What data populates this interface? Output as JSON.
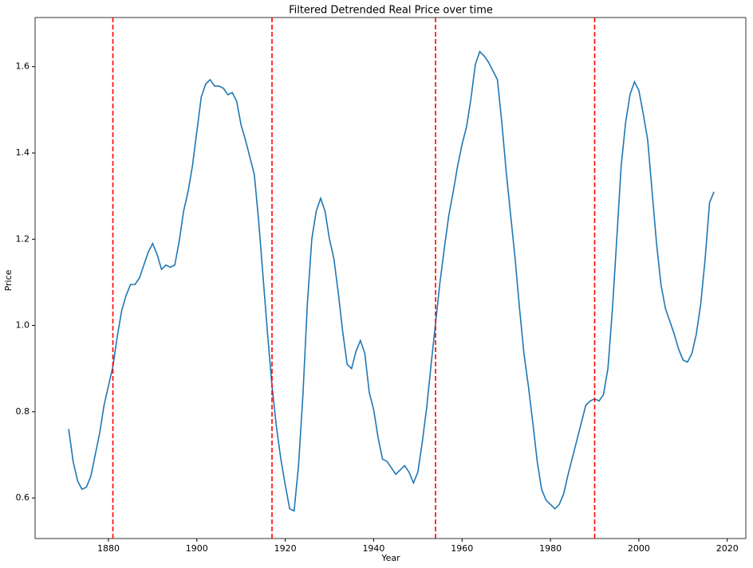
{
  "chart_data": {
    "type": "line",
    "title": "Filtered Detrended Real Price over time",
    "x_label": "Year",
    "y_label": "Price",
    "color": "#1f77b4",
    "x": [
      1871,
      1872,
      1873,
      1874,
      1875,
      1876,
      1877,
      1878,
      1879,
      1880,
      1881,
      1882,
      1883,
      1884,
      1885,
      1886,
      1887,
      1888,
      1889,
      1890,
      1891,
      1892,
      1893,
      1894,
      1895,
      1896,
      1897,
      1898,
      1899,
      1900,
      1901,
      1902,
      1903,
      1904,
      1905,
      1906,
      1907,
      1908,
      1909,
      1910,
      1911,
      1912,
      1913,
      1914,
      1915,
      1916,
      1917,
      1918,
      1919,
      1920,
      1921,
      1922,
      1923,
      1924,
      1925,
      1926,
      1927,
      1928,
      1929,
      1930,
      1931,
      1932,
      1933,
      1934,
      1935,
      1936,
      1937,
      1938,
      1939,
      1940,
      1941,
      1942,
      1943,
      1944,
      1945,
      1946,
      1947,
      1948,
      1949,
      1950,
      1951,
      1952,
      1953,
      1954,
      1955,
      1956,
      1957,
      1958,
      1959,
      1960,
      1961,
      1962,
      1963,
      1964,
      1965,
      1966,
      1967,
      1968,
      1969,
      1970,
      1971,
      1972,
      1973,
      1974,
      1975,
      1976,
      1977,
      1978,
      1979,
      1980,
      1981,
      1982,
      1983,
      1984,
      1985,
      1986,
      1987,
      1988,
      1989,
      1990,
      1991,
      1992,
      1993,
      1994,
      1995,
      1996,
      1997,
      1998,
      1999,
      2000,
      2001,
      2002,
      2003,
      2004,
      2005,
      2006,
      2007,
      2008,
      2009,
      2010,
      2011,
      2012,
      2013,
      2014,
      2015,
      2016,
      2017
    ],
    "values": [
      0.76,
      0.685,
      0.64,
      0.62,
      0.625,
      0.65,
      0.7,
      0.75,
      0.815,
      0.86,
      0.905,
      0.975,
      1.035,
      1.07,
      1.095,
      1.095,
      1.11,
      1.14,
      1.17,
      1.19,
      1.165,
      1.13,
      1.14,
      1.135,
      1.14,
      1.195,
      1.265,
      1.31,
      1.37,
      1.45,
      1.53,
      1.56,
      1.57,
      1.555,
      1.555,
      1.55,
      1.535,
      1.54,
      1.52,
      1.465,
      1.43,
      1.39,
      1.35,
      1.24,
      1.11,
      0.98,
      0.86,
      0.765,
      0.69,
      0.63,
      0.575,
      0.57,
      0.675,
      0.84,
      1.05,
      1.2,
      1.265,
      1.295,
      1.265,
      1.2,
      1.155,
      1.075,
      0.985,
      0.91,
      0.9,
      0.94,
      0.965,
      0.935,
      0.845,
      0.805,
      0.74,
      0.69,
      0.685,
      0.67,
      0.655,
      0.665,
      0.675,
      0.66,
      0.635,
      0.66,
      0.73,
      0.81,
      0.91,
      1.005,
      1.1,
      1.18,
      1.255,
      1.31,
      1.37,
      1.42,
      1.46,
      1.525,
      1.605,
      1.635,
      1.625,
      1.61,
      1.59,
      1.57,
      1.47,
      1.355,
      1.255,
      1.155,
      1.04,
      0.935,
      0.86,
      0.775,
      0.685,
      0.62,
      0.595,
      0.585,
      0.575,
      0.585,
      0.61,
      0.655,
      0.695,
      0.735,
      0.775,
      0.815,
      0.825,
      0.83,
      0.825,
      0.84,
      0.9,
      1.035,
      1.2,
      1.37,
      1.47,
      1.535,
      1.565,
      1.545,
      1.49,
      1.43,
      1.31,
      1.19,
      1.095,
      1.04,
      1.01,
      0.98,
      0.945,
      0.92,
      0.915,
      0.935,
      0.98,
      1.05,
      1.155,
      1.285,
      1.31
    ],
    "vlines": [
      1881,
      1917,
      1954,
      1990
    ],
    "vline_color": "#ff0000",
    "xlim": [
      1863.4,
      2024.2
    ],
    "xticks": [
      1880,
      1900,
      1920,
      1940,
      1960,
      1980,
      2000,
      2020
    ],
    "ylim": [
      0.506,
      1.714
    ],
    "yticks": [
      0.6,
      0.8,
      {
        "value": 1,
        "label": "1.0"
      },
      1.2,
      1.4,
      1.6
    ],
    "grid": false
  }
}
